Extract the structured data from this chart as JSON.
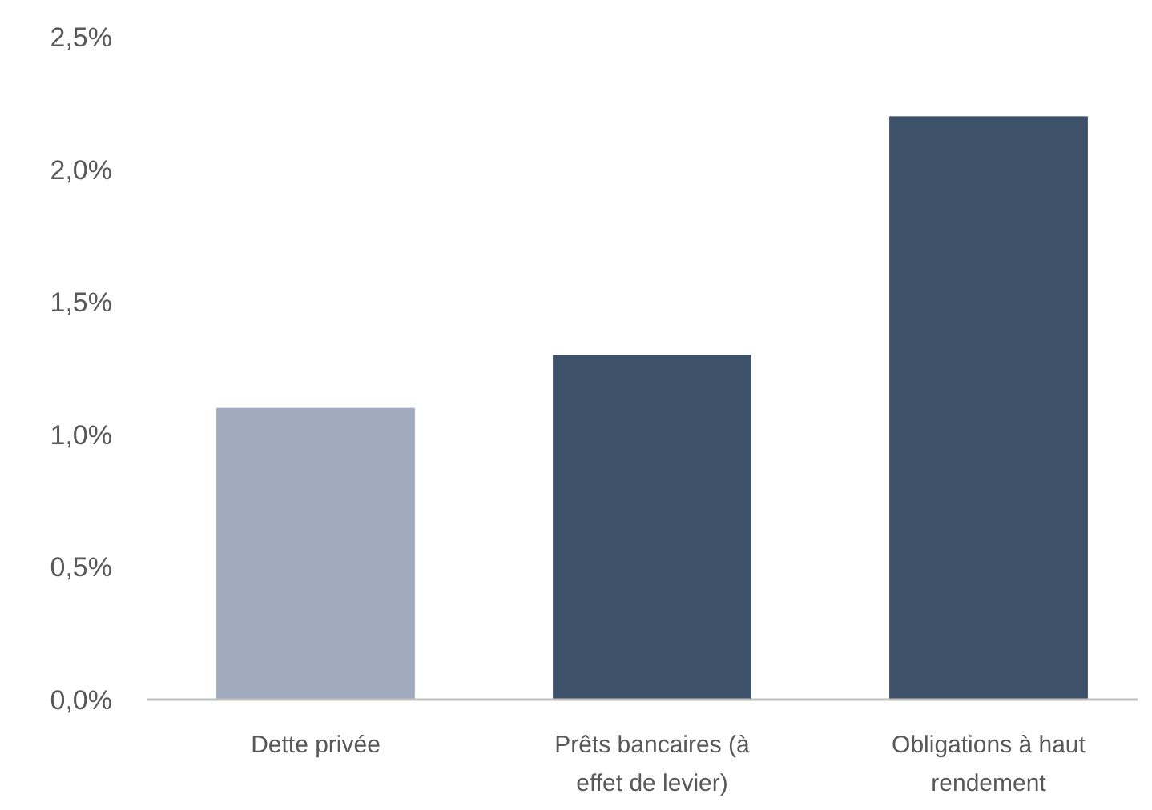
{
  "chart_data": {
    "type": "bar",
    "categories": [
      "Dette privée",
      "Prêts bancaires (à effet de levier)",
      "Obligations à haut rendement"
    ],
    "values": [
      1.1,
      1.3,
      2.2
    ],
    "colors": [
      "#a0acbd",
      "#3d5269",
      "#3d5269"
    ],
    "ylim": [
      0,
      2.5
    ],
    "yticks": [
      {
        "value": 0,
        "label": "0,0%"
      },
      {
        "value": 0.5,
        "label": "0,5%"
      },
      {
        "value": 1,
        "label": "1,0%"
      },
      {
        "value": 1.5,
        "label": "1,5%"
      },
      {
        "value": 2,
        "label": "2,0%"
      },
      {
        "value": 2.5,
        "label": "2,5%"
      }
    ],
    "grid": false
  }
}
